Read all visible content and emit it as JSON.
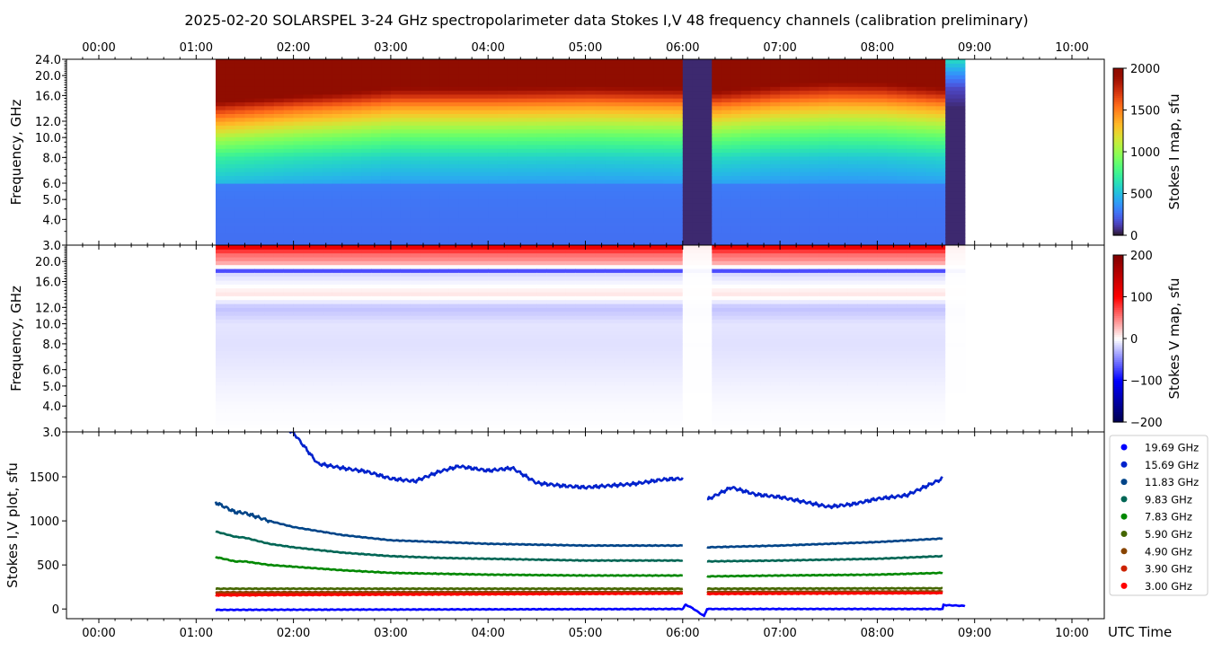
{
  "chart_data": [
    {
      "type": "heatmap",
      "title": "2025-02-20  SOLARSPEL  3-24 GHz spectropolarimeter data   Stokes I,V   48 frequency channels   (calibration preliminary)",
      "ylabel": "Frequency, GHz",
      "colorbar_label": "Stokes I map, sfu",
      "colormap": "turbo",
      "clim": [
        0,
        2000
      ],
      "colorbar_ticks": [
        "0",
        "500",
        "1000",
        "1500",
        "2000"
      ],
      "ylim": [
        3.0,
        24.0
      ],
      "yscale": "log",
      "ytick_labels": [
        "24.0",
        "20.0",
        "16.0",
        "12.0",
        "10.0",
        "8.0",
        "6.0",
        "5.0",
        "4.0",
        "3.0"
      ],
      "yticks": [
        24,
        20,
        16,
        12,
        10,
        8,
        6,
        5,
        4,
        3
      ],
      "n_channels": 48,
      "data_range_h": [
        1.2,
        8.67
      ],
      "gaps_h": [
        [
          6.0,
          6.25
        ]
      ],
      "tail_range_h": [
        8.67,
        8.9
      ],
      "freqs_ghz": [
        3,
        4,
        5,
        5.9,
        6.1,
        8,
        10,
        12,
        14,
        16,
        18,
        20,
        24
      ],
      "profile_sfu": [
        220,
        230,
        240,
        260,
        380,
        560,
        850,
        1150,
        1450,
        1800,
        2100,
        2500,
        3000
      ],
      "times_h": [
        1.2,
        1.5,
        2.0,
        2.5,
        3.0,
        4.0,
        5.0,
        6.0,
        6.25,
        7.0,
        7.5,
        8.0,
        8.67
      ],
      "profile_scale_above_6ghz": [
        1.25,
        1.2,
        1.12,
        1.06,
        1.0,
        1.0,
        0.98,
        1.0,
        1.05,
        0.95,
        0.92,
        0.93,
        1.0
      ]
    },
    {
      "type": "heatmap",
      "ylabel": "Frequency, GHz",
      "colorbar_label": "Stokes V map, sfu",
      "colormap": "seismic",
      "clim": [
        -200,
        200
      ],
      "colorbar_ticks": [
        "−200",
        "−100",
        "0",
        "100",
        "200"
      ],
      "ylim": [
        3.0,
        24.0
      ],
      "yscale": "log",
      "ytick_labels": [
        "20.0",
        "16.0",
        "12.0",
        "10.0",
        "8.0",
        "6.0",
        "5.0",
        "4.0",
        "3.0"
      ],
      "yticks": [
        20,
        16,
        12,
        10,
        8,
        6,
        5,
        4,
        3
      ],
      "freqs_ghz": [
        3,
        4,
        5,
        6,
        8,
        10,
        12,
        13,
        14,
        16,
        17.5,
        18,
        19,
        20,
        22,
        24
      ],
      "profile_sfu": [
        0,
        -2,
        -5,
        -8,
        -12,
        -10,
        -25,
        -5,
        10,
        -5,
        -15,
        -80,
        10,
        40,
        60,
        130
      ]
    },
    {
      "type": "line",
      "ylabel": "Stokes I,V plot, sfu",
      "xlabel": "UTC Time",
      "ylim": [
        -110,
        2010
      ],
      "ytick_labels": [
        "0",
        "500",
        "1000",
        "1500"
      ],
      "yticks": [
        0,
        500,
        1000,
        1500
      ],
      "legend_position": "right",
      "series": [
        {
          "name": "19.69 GHz",
          "color": "#0000ff",
          "t": [
            1.2,
            3.0,
            6.0,
            null,
            6.25,
            8.67
          ],
          "v": [
            3400,
            3200,
            3100,
            null,
            2900,
            3100
          ]
        },
        {
          "name": "15.69 GHz",
          "color": "#0022cc",
          "t": [
            1.2,
            1.6,
            2.0,
            2.25,
            2.5,
            2.75,
            3.0,
            3.25,
            3.5,
            3.7,
            4.0,
            4.25,
            4.5,
            4.75,
            5.0,
            5.5,
            5.8,
            6.0,
            null,
            6.25,
            6.5,
            6.75,
            7.0,
            7.5,
            7.75,
            8.0,
            8.3,
            8.67
          ],
          "v": [
            2500,
            2250,
            2000,
            1650,
            1600,
            1560,
            1480,
            1450,
            1560,
            1620,
            1570,
            1600,
            1430,
            1400,
            1380,
            1420,
            1470,
            1480,
            null,
            1240,
            1380,
            1300,
            1270,
            1160,
            1190,
            1250,
            1290,
            1480
          ]
        },
        {
          "name": "11.83 GHz",
          "color": "#004488",
          "t": [
            1.2,
            1.4,
            1.5,
            1.75,
            2.0,
            2.5,
            3.0,
            3.5,
            4.0,
            5.0,
            6.0,
            null,
            6.25,
            7.0,
            8.0,
            8.67
          ],
          "v": [
            1210,
            1100,
            1090,
            1000,
            930,
            840,
            780,
            760,
            740,
            720,
            720,
            null,
            700,
            720,
            760,
            800
          ]
        },
        {
          "name": "9.83 GHz",
          "color": "#006655",
          "t": [
            1.2,
            1.4,
            1.5,
            1.75,
            2.0,
            2.5,
            3.0,
            3.5,
            4.0,
            5.0,
            6.0,
            null,
            6.25,
            7.0,
            8.0,
            8.67
          ],
          "v": [
            880,
            820,
            810,
            740,
            700,
            640,
            600,
            580,
            570,
            550,
            550,
            null,
            540,
            550,
            570,
            600
          ]
        },
        {
          "name": "7.83 GHz",
          "color": "#008800",
          "t": [
            1.2,
            1.4,
            1.5,
            1.75,
            2.0,
            2.5,
            3.0,
            3.5,
            4.0,
            5.0,
            6.0,
            null,
            6.25,
            7.0,
            8.0,
            8.67
          ],
          "v": [
            590,
            540,
            540,
            500,
            480,
            440,
            410,
            400,
            390,
            380,
            380,
            null,
            370,
            380,
            390,
            410
          ]
        },
        {
          "name": "5.90 GHz",
          "color": "#446600",
          "t": [
            1.2,
            6.0,
            null,
            6.25,
            8.67
          ],
          "v": [
            230,
            230,
            null,
            230,
            235
          ]
        },
        {
          "name": "4.90 GHz",
          "color": "#884400",
          "t": [
            1.2,
            6.0,
            null,
            6.25,
            8.67
          ],
          "v": [
            190,
            195,
            null,
            195,
            200
          ]
        },
        {
          "name": "3.90 GHz",
          "color": "#cc2200",
          "t": [
            1.2,
            6.0,
            null,
            6.25,
            8.67
          ],
          "v": [
            170,
            180,
            null,
            178,
            185
          ]
        },
        {
          "name": "3.00 GHz",
          "color": "#ff0000",
          "t": [
            1.2,
            6.0,
            null,
            6.25,
            8.67
          ],
          "v": [
            155,
            175,
            null,
            170,
            180
          ]
        },
        {
          "name": null,
          "color": "#0000ff",
          "t": [
            1.2,
            6.0,
            6.03,
            6.1,
            6.22,
            6.25,
            8.67,
            8.68,
            8.9
          ],
          "v": [
            -10,
            0,
            50,
            10,
            -80,
            0,
            0,
            45,
            35
          ]
        }
      ]
    }
  ],
  "xaxis": {
    "tick_labels": [
      "00:00",
      "01:00",
      "02:00",
      "03:00",
      "04:00",
      "05:00",
      "06:00",
      "07:00",
      "08:00",
      "09:00",
      "10:00"
    ],
    "ticks_h": [
      0,
      1,
      2,
      3,
      4,
      5,
      6,
      7,
      8,
      9,
      10
    ],
    "label": "UTC Time"
  }
}
